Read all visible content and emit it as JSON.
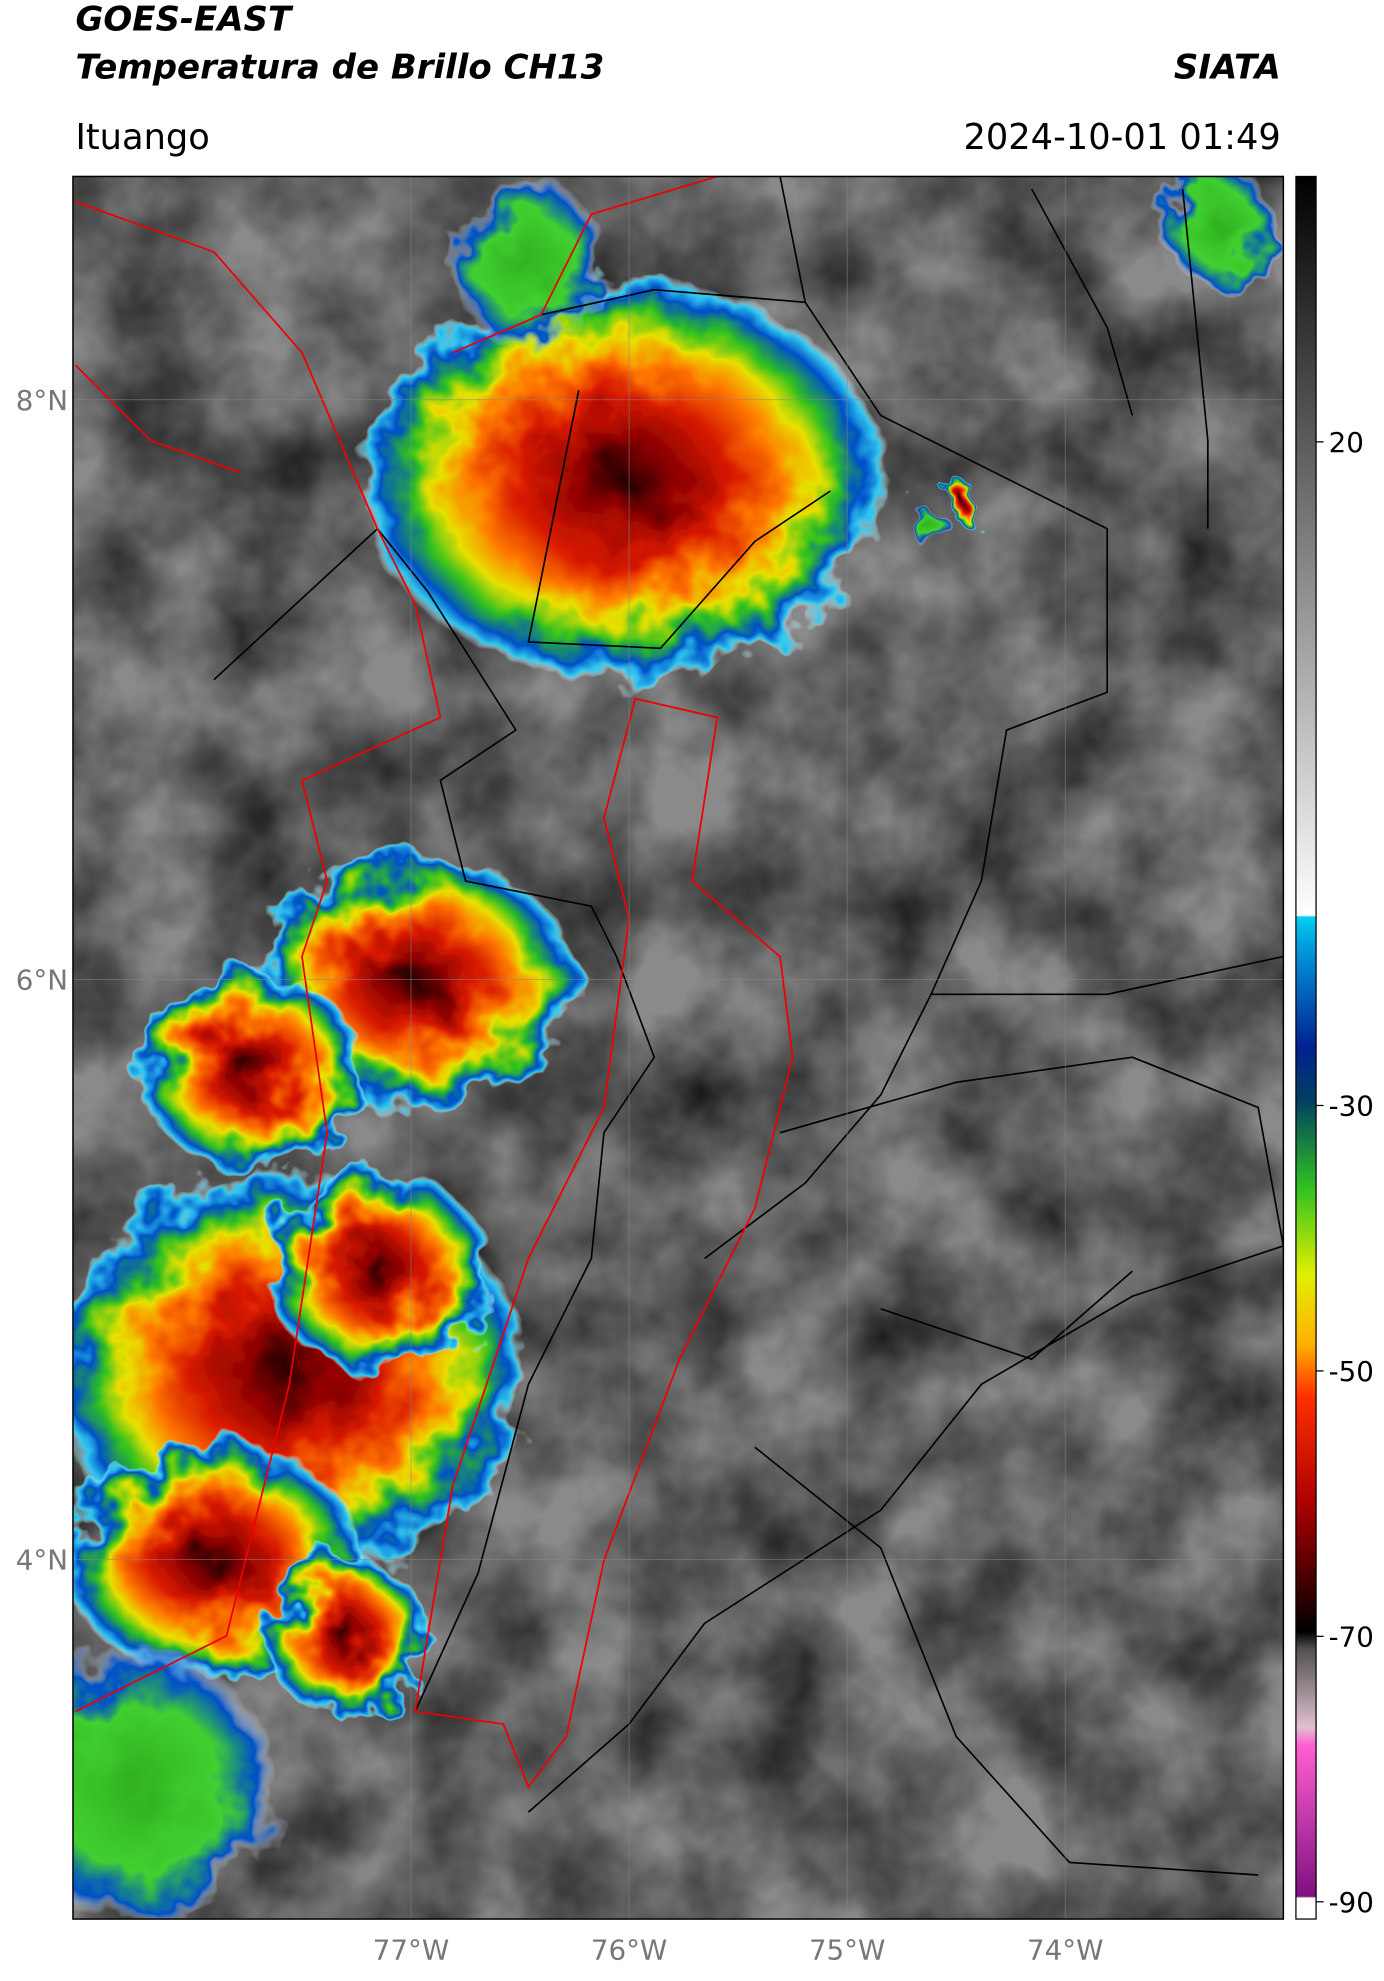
{
  "header": {
    "title": "GOES-EAST",
    "subtitle": "Temperatura de Brillo CH13",
    "source": "SIATA",
    "location": "Ituango",
    "datetime": "2024-10-01 01:49"
  },
  "map": {
    "xlim": [
      -78.55,
      -73
    ],
    "ylim": [
      2.76,
      8.77
    ],
    "xticks": [
      {
        "value": -77,
        "label": "77°W"
      },
      {
        "value": -76,
        "label": "76°W"
      },
      {
        "value": -75,
        "label": "75°W"
      },
      {
        "value": -74,
        "label": "74°W"
      }
    ],
    "yticks": [
      {
        "value": 8,
        "label": "8°N"
      },
      {
        "value": 6,
        "label": "6°N"
      },
      {
        "value": 4,
        "label": "4°N"
      }
    ],
    "grid": true
  },
  "colorbar": {
    "lim": [
      -91.3,
      40
    ],
    "ticks": [
      20,
      -30,
      -50,
      -70,
      -90
    ]
  }
}
